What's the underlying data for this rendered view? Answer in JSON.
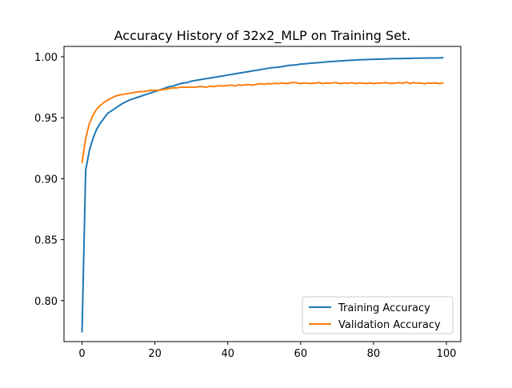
{
  "chart_data": {
    "type": "line",
    "title": "Accuracy History of 32x2_MLP on Training Set.",
    "xlabel": "",
    "ylabel": "",
    "xlim": [
      -4.95,
      103.95
    ],
    "ylim": [
      0.7664,
      1.0085
    ],
    "xticks": [
      0,
      20,
      40,
      60,
      80,
      100
    ],
    "xtick_labels": [
      "0",
      "20",
      "40",
      "60",
      "80",
      "100"
    ],
    "yticks": [
      0.8,
      0.85,
      0.9,
      0.95,
      1.0
    ],
    "ytick_labels": [
      "0.80",
      "0.85",
      "0.90",
      "0.95",
      "1.00"
    ],
    "grid": false,
    "legend_position": "lower-right",
    "x": [
      0,
      1,
      2,
      3,
      4,
      5,
      6,
      7,
      8,
      9,
      10,
      11,
      12,
      13,
      14,
      15,
      16,
      17,
      18,
      19,
      20,
      21,
      22,
      23,
      24,
      25,
      26,
      27,
      28,
      29,
      30,
      31,
      32,
      33,
      34,
      35,
      36,
      37,
      38,
      39,
      40,
      41,
      42,
      43,
      44,
      45,
      46,
      47,
      48,
      49,
      50,
      51,
      52,
      53,
      54,
      55,
      56,
      57,
      58,
      59,
      60,
      61,
      62,
      63,
      64,
      65,
      66,
      67,
      68,
      69,
      70,
      71,
      72,
      73,
      74,
      75,
      76,
      77,
      78,
      79,
      80,
      81,
      82,
      83,
      84,
      85,
      86,
      87,
      88,
      89,
      90,
      91,
      92,
      93,
      94,
      95,
      96,
      97,
      98,
      99
    ],
    "series": [
      {
        "name": "Training Accuracy",
        "color": "#1f77b4",
        "values": [
          0.7745,
          0.907,
          0.923,
          0.933,
          0.9405,
          0.9455,
          0.9495,
          0.9535,
          0.9555,
          0.9575,
          0.9595,
          0.9615,
          0.963,
          0.9645,
          0.9655,
          0.9665,
          0.9675,
          0.9685,
          0.9695,
          0.9705,
          0.9715,
          0.9725,
          0.9735,
          0.9745,
          0.9755,
          0.976,
          0.977,
          0.978,
          0.9785,
          0.979,
          0.98,
          0.9805,
          0.981,
          0.9815,
          0.982,
          0.9825,
          0.983,
          0.9835,
          0.984,
          0.9845,
          0.985,
          0.9855,
          0.986,
          0.9865,
          0.987,
          0.9875,
          0.988,
          0.9885,
          0.989,
          0.9895,
          0.99,
          0.9905,
          0.991,
          0.9912,
          0.9915,
          0.992,
          0.9925,
          0.993,
          0.9932,
          0.9935,
          0.994,
          0.9942,
          0.9945,
          0.9948,
          0.995,
          0.9952,
          0.9955,
          0.9958,
          0.996,
          0.9962,
          0.9964,
          0.9966,
          0.9968,
          0.997,
          0.9972,
          0.9973,
          0.9975,
          0.9976,
          0.9977,
          0.9978,
          0.9979,
          0.998,
          0.9981,
          0.9982,
          0.9983,
          0.9984,
          0.9985,
          0.9985,
          0.9986,
          0.9987,
          0.9987,
          0.9988,
          0.9988,
          0.9989,
          0.9989,
          0.999,
          0.999,
          0.999,
          0.9991,
          0.9992
        ]
      },
      {
        "name": "Validation Accuracy",
        "color": "#ff7f0e",
        "values": [
          0.9135,
          0.933,
          0.945,
          0.952,
          0.957,
          0.96,
          0.9625,
          0.9645,
          0.966,
          0.9675,
          0.9685,
          0.969,
          0.9695,
          0.97,
          0.9705,
          0.971,
          0.9715,
          0.9715,
          0.972,
          0.9725,
          0.9725,
          0.9725,
          0.973,
          0.9735,
          0.974,
          0.9745,
          0.9745,
          0.975,
          0.975,
          0.975,
          0.9752,
          0.975,
          0.9755,
          0.9755,
          0.975,
          0.9758,
          0.9755,
          0.976,
          0.9762,
          0.976,
          0.9765,
          0.9768,
          0.976,
          0.977,
          0.9765,
          0.9772,
          0.977,
          0.9768,
          0.9775,
          0.9778,
          0.9775,
          0.978,
          0.9778,
          0.9782,
          0.978,
          0.9785,
          0.978,
          0.9785,
          0.979,
          0.9785,
          0.978,
          0.9785,
          0.9782,
          0.978,
          0.9785,
          0.9788,
          0.978,
          0.9785,
          0.9782,
          0.9788,
          0.9785,
          0.978,
          0.9785,
          0.9782,
          0.9787,
          0.978,
          0.9785,
          0.9783,
          0.978,
          0.9785,
          0.978,
          0.9785,
          0.9783,
          0.9788,
          0.9785,
          0.978,
          0.9785,
          0.9787,
          0.9782,
          0.9792,
          0.978,
          0.9788,
          0.9783,
          0.9785,
          0.9778,
          0.9785,
          0.9782,
          0.9785,
          0.978,
          0.9785
        ]
      }
    ]
  }
}
